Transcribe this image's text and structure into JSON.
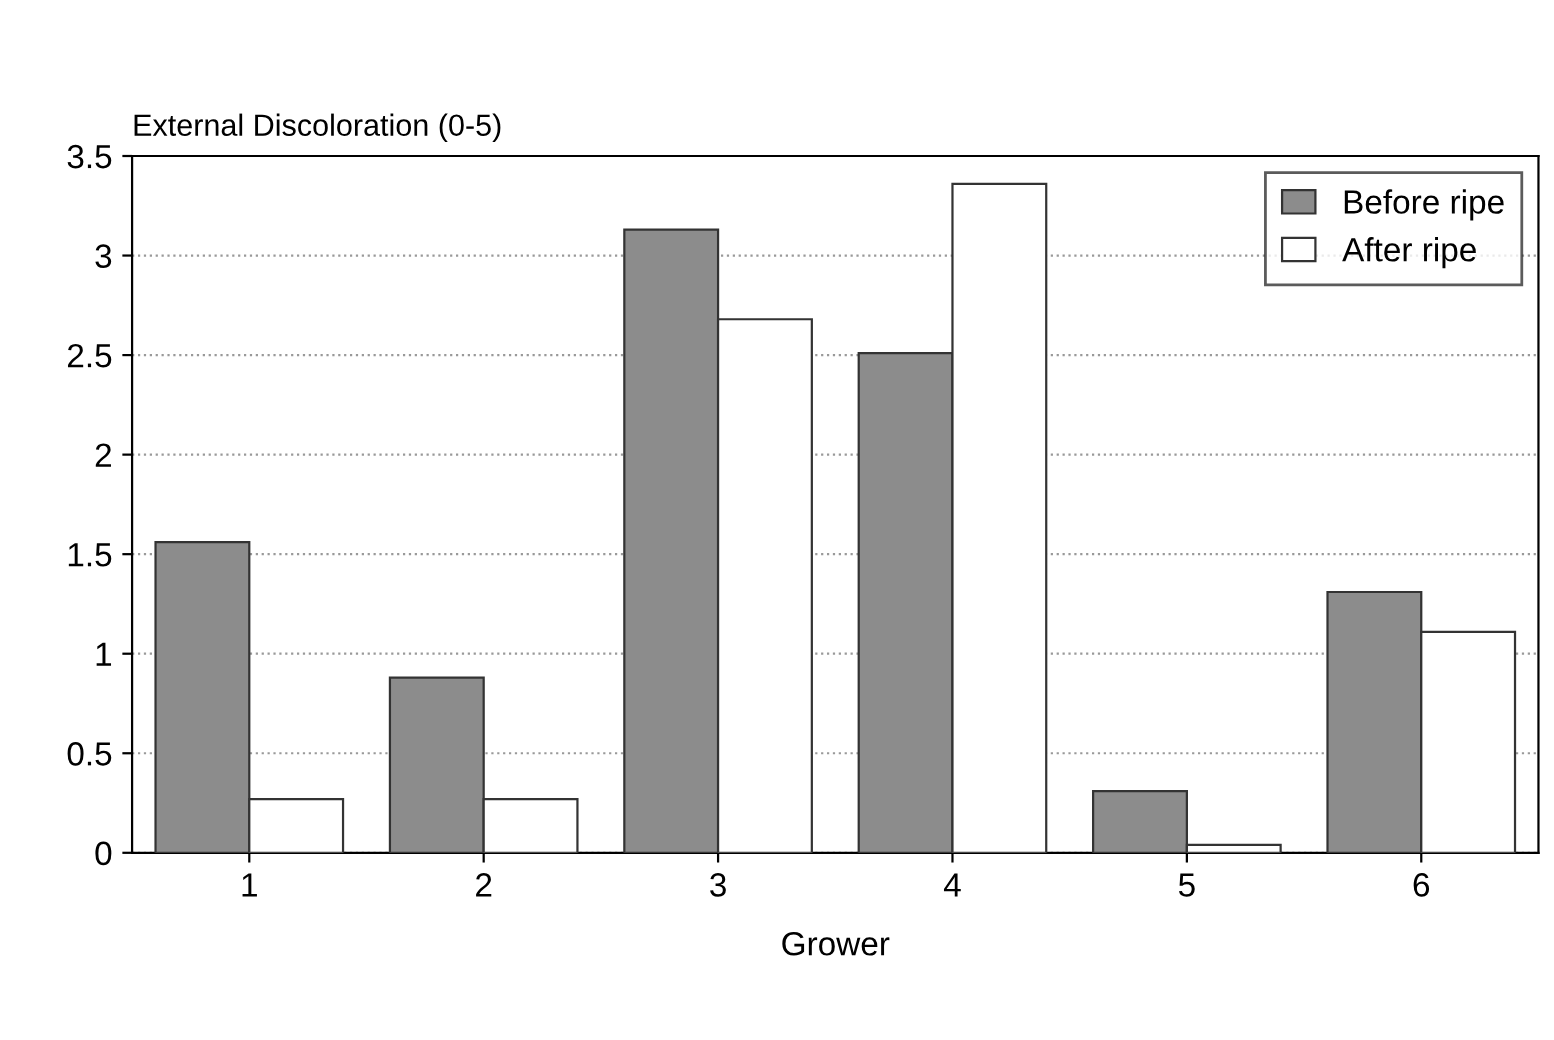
{
  "chart_data": {
    "type": "bar",
    "xlabel": "Grower",
    "ylabel": "External Discoloration (0-5)",
    "categories": [
      "1",
      "2",
      "3",
      "4",
      "5",
      "6"
    ],
    "series": [
      {
        "name": "Before ripe",
        "color": "#8c8c8c",
        "values": [
          1.56,
          0.88,
          3.13,
          2.51,
          0.31,
          1.31
        ]
      },
      {
        "name": "After ripe",
        "color": "#ffffff",
        "values": [
          0.27,
          0.27,
          2.68,
          3.36,
          0.04,
          1.11
        ]
      }
    ],
    "ylim": [
      0,
      3.5
    ],
    "yticks": [
      0,
      0.5,
      1,
      1.5,
      2,
      2.5,
      3,
      3.5
    ],
    "grid": "y",
    "legend": "top right"
  }
}
